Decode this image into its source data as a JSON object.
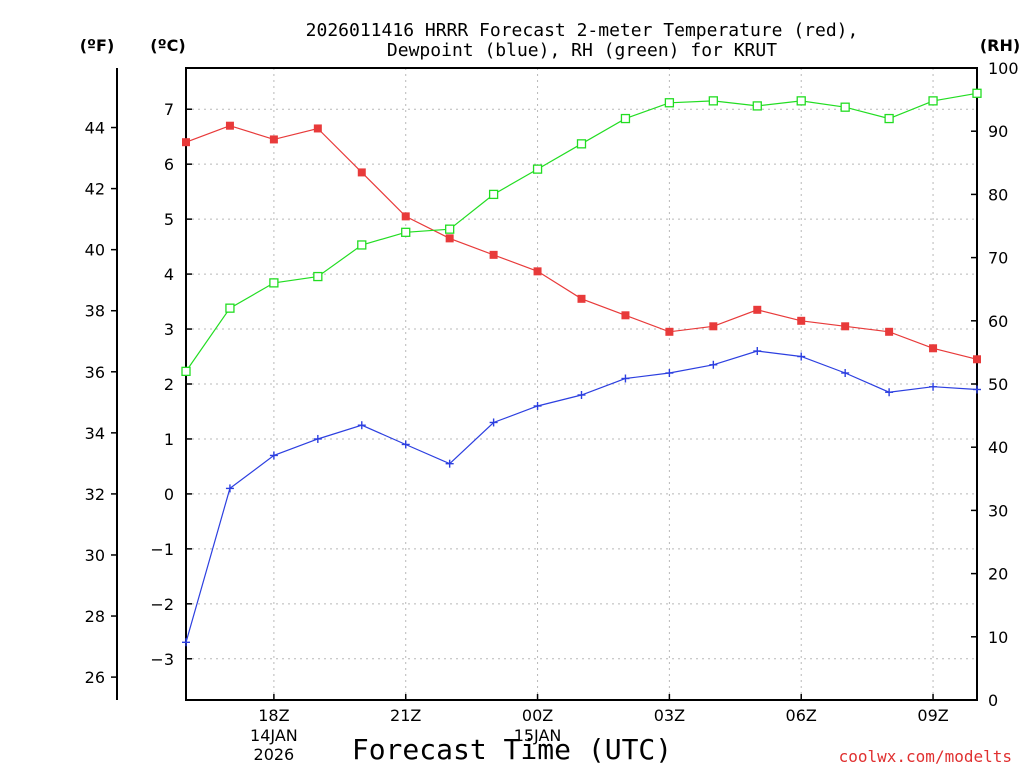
{
  "chart_data": {
    "type": "line",
    "title_line1": "2026011416 HRRR Forecast 2-meter Temperature (red),",
    "title_line2": "Dewpoint (blue), RH (green) for KRUT",
    "xlabel": "Forecast Time (UTC)",
    "credit": "coolwx.com/modelts",
    "units": {
      "fahrenheit": "(ºF)",
      "celsius": "(ºC)",
      "rh": "(RH)"
    },
    "x_hours": [
      16,
      17,
      18,
      19,
      20,
      21,
      22,
      23,
      24,
      25,
      26,
      27,
      28,
      29,
      30,
      31,
      32,
      33,
      34
    ],
    "xlim": [
      16,
      34
    ],
    "x_ticks": [
      {
        "hour": 18,
        "label": "18Z",
        "date": "14JAN",
        "year": "2026"
      },
      {
        "hour": 21,
        "label": "21Z"
      },
      {
        "hour": 24,
        "label": "00Z",
        "date": "15JAN"
      },
      {
        "hour": 27,
        "label": "03Z"
      },
      {
        "hour": 30,
        "label": "06Z"
      },
      {
        "hour": 33,
        "label": "09Z"
      }
    ],
    "celsius_axis": {
      "min": -3.75,
      "max": 7.75,
      "ticks": [
        -3,
        -2,
        -1,
        0,
        1,
        2,
        3,
        4,
        5,
        6,
        7
      ]
    },
    "fahrenheit_axis": {
      "ticks": [
        26,
        28,
        30,
        32,
        34,
        36,
        38,
        40,
        42,
        44
      ]
    },
    "rh_axis": {
      "min": 0,
      "max": 100,
      "ticks": [
        0,
        10,
        20,
        30,
        40,
        50,
        60,
        70,
        80,
        90,
        100
      ]
    },
    "series": [
      {
        "name": "Temperature",
        "units": "C",
        "color": "#e83a3a",
        "marker": "filled-square",
        "values": [
          6.4,
          6.7,
          6.45,
          6.65,
          5.85,
          5.05,
          4.65,
          4.35,
          4.05,
          3.55,
          3.25,
          2.95,
          3.05,
          3.35,
          3.15,
          3.05,
          2.95,
          2.65,
          2.45
        ]
      },
      {
        "name": "Dewpoint",
        "units": "C",
        "color": "#2c3fe0",
        "marker": "plus",
        "values": [
          -2.7,
          0.1,
          0.7,
          1.0,
          1.25,
          0.9,
          0.55,
          1.3,
          1.6,
          1.8,
          2.1,
          2.2,
          2.35,
          2.6,
          2.5,
          2.2,
          1.85,
          1.95,
          1.9
        ]
      },
      {
        "name": "RH",
        "units": "%",
        "color": "#22dd22",
        "marker": "open-square",
        "values": [
          52,
          62,
          66,
          67,
          72,
          74,
          74.5,
          80,
          84,
          88,
          92,
          94.5,
          94.8,
          94,
          94.8,
          93.8,
          92,
          94.8,
          96
        ]
      }
    ]
  }
}
